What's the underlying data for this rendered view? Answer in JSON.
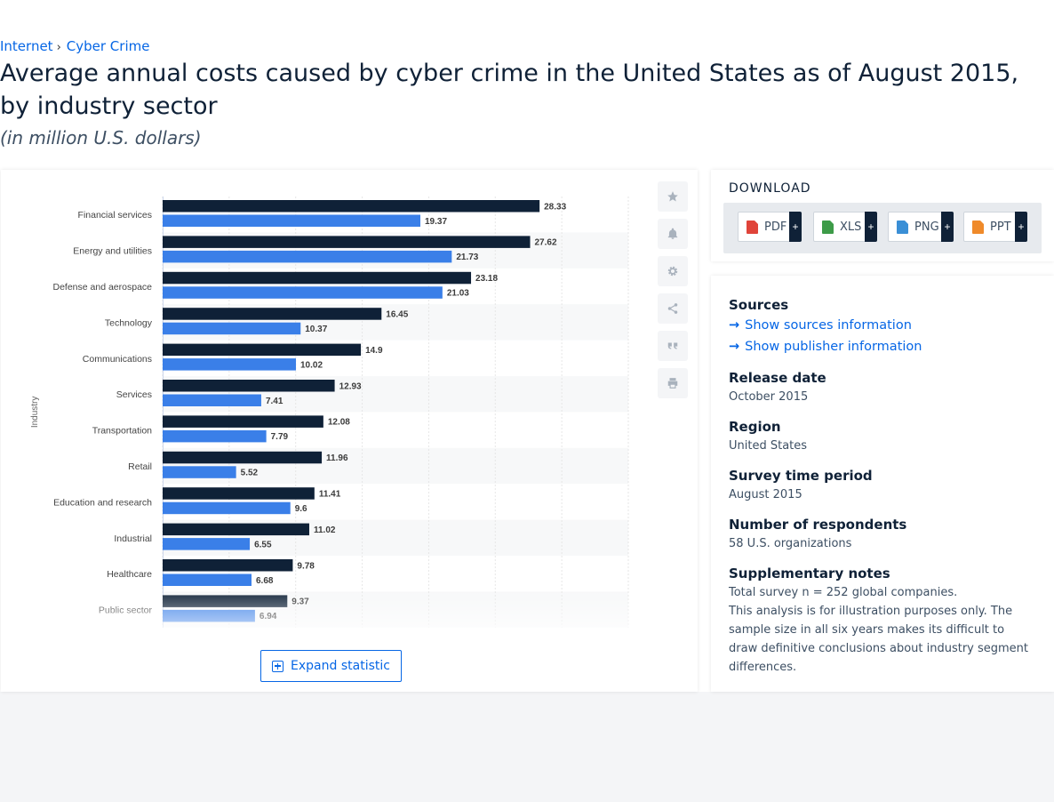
{
  "breadcrumb": {
    "items": [
      "Internet",
      "Cyber Crime"
    ],
    "separator": "›"
  },
  "page": {
    "title": "Average annual costs caused by cyber crime in the United States as of August 2015, by industry sector",
    "subtitle": "(in million U.S. dollars)"
  },
  "chart_data": {
    "type": "bar",
    "orientation": "horizontal",
    "ylabel": "Industry",
    "categories": [
      "Financial services",
      "Energy and utilities",
      "Defense and aerospace",
      "Technology",
      "Communications",
      "Services",
      "Transportation",
      "Retail",
      "Education and research",
      "Industrial",
      "Healthcare",
      "Public sector"
    ],
    "series": [
      {
        "values": [
          28.33,
          27.62,
          23.18,
          16.45,
          14.9,
          12.93,
          12.08,
          11.96,
          11.41,
          11.02,
          9.78,
          9.37
        ],
        "color": "#0f2137"
      },
      {
        "values": [
          19.37,
          21.73,
          21.03,
          10.37,
          10.02,
          7.41,
          7.79,
          5.52,
          9.6,
          6.55,
          6.68,
          6.94
        ],
        "color": "#3a7fe8"
      }
    ],
    "xlim": [
      0,
      35
    ],
    "grid": true,
    "data_labels": true
  },
  "toolbar": {
    "icons": [
      "star-icon",
      "bell-icon",
      "gear-icon",
      "share-icon",
      "quote-icon",
      "print-icon"
    ]
  },
  "expand_label": "Expand statistic",
  "download": {
    "title": "DOWNLOAD",
    "formats": [
      {
        "label": "PDF",
        "color": "#e0443a"
      },
      {
        "label": "XLS",
        "color": "#3d9b48"
      },
      {
        "label": "PNG",
        "color": "#3a8fd6"
      },
      {
        "label": "PPT",
        "color": "#ef8a2a"
      }
    ],
    "plus": "+"
  },
  "info": {
    "sources_heading": "Sources",
    "show_sources": "Show sources information",
    "show_publisher": "Show publisher information",
    "release_date_heading": "Release date",
    "release_date": "October 2015",
    "region_heading": "Region",
    "region": "United States",
    "survey_period_heading": "Survey time period",
    "survey_period": "August 2015",
    "respondents_heading": "Number of respondents",
    "respondents": "58 U.S. organizations",
    "notes_heading": "Supplementary notes",
    "notes_line1": "Total survey n = 252 global companies.",
    "notes_line2": "This analysis is for illustration purposes only. The sample size in all six years makes its difficult to draw definitive conclusions about industry segment differences."
  }
}
